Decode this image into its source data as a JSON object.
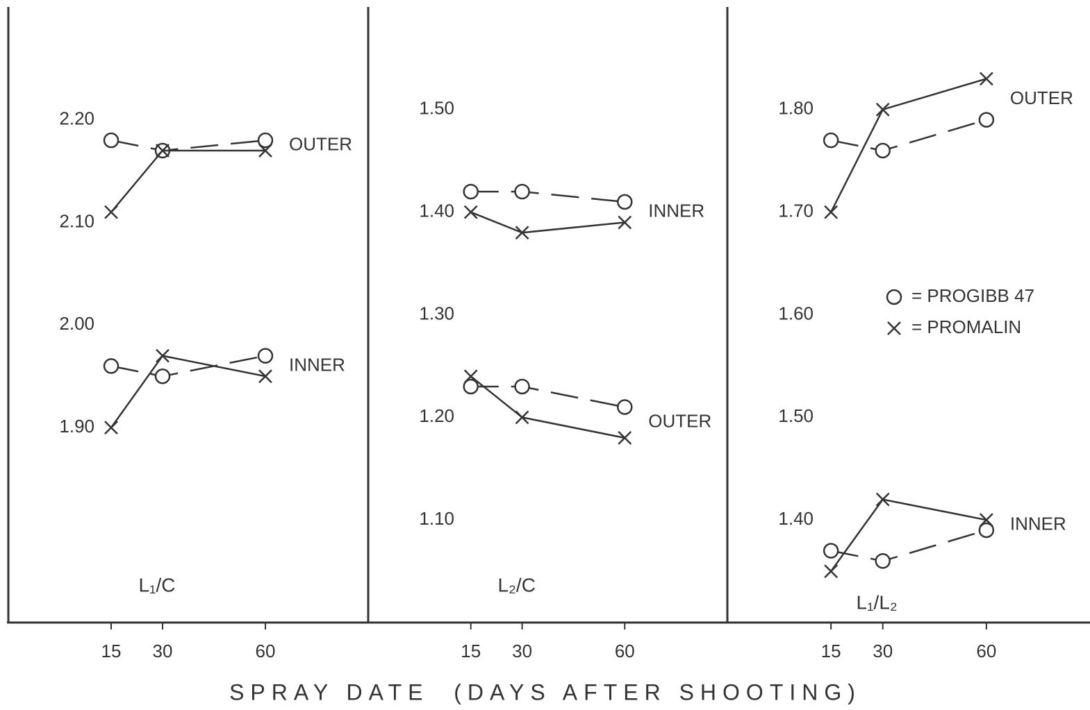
{
  "chart_data": [
    {
      "type": "line",
      "panel_label": "L₁/C",
      "x": [
        15,
        30,
        60
      ],
      "xlim": [
        -15,
        90
      ],
      "xticks": [
        15,
        30,
        60
      ],
      "ylim": [
        1.71,
        2.31
      ],
      "yticks": [
        {
          "value": 1.9,
          "label": "1.90"
        },
        {
          "value": 2.0,
          "label": "2.00"
        },
        {
          "value": 2.1,
          "label": "2.10"
        },
        {
          "value": 2.2,
          "label": "2.20"
        }
      ],
      "groups": [
        {
          "label": "OUTER",
          "series": [
            {
              "marker": "circle",
              "dashed": true,
              "values": [
                2.18,
                2.17,
                2.18
              ]
            },
            {
              "marker": "x",
              "dashed": false,
              "values": [
                2.11,
                2.17,
                2.17
              ]
            }
          ]
        },
        {
          "label": "INNER",
          "series": [
            {
              "marker": "circle",
              "dashed": true,
              "values": [
                1.96,
                1.95,
                1.97
              ]
            },
            {
              "marker": "x",
              "dashed": false,
              "values": [
                1.9,
                1.97,
                1.95
              ]
            }
          ]
        }
      ]
    },
    {
      "type": "line",
      "panel_label": "L₂/C",
      "x": [
        15,
        30,
        60
      ],
      "xlim": [
        -15,
        90
      ],
      "xticks": [
        15,
        30,
        60
      ],
      "ylim": [
        1.0,
        1.6
      ],
      "yticks": [
        {
          "value": 1.1,
          "label": "1.10"
        },
        {
          "value": 1.2,
          "label": "1.20"
        },
        {
          "value": 1.3,
          "label": "1.30"
        },
        {
          "value": 1.4,
          "label": "1.40"
        },
        {
          "value": 1.5,
          "label": "1.50"
        }
      ],
      "groups": [
        {
          "label": "INNER",
          "series": [
            {
              "marker": "circle",
              "dashed": true,
              "values": [
                1.42,
                1.42,
                1.41
              ]
            },
            {
              "marker": "x",
              "dashed": false,
              "values": [
                1.4,
                1.38,
                1.39
              ]
            }
          ]
        },
        {
          "label": "OUTER",
          "series": [
            {
              "marker": "circle",
              "dashed": true,
              "values": [
                1.23,
                1.23,
                1.21
              ]
            },
            {
              "marker": "x",
              "dashed": false,
              "values": [
                1.24,
                1.2,
                1.18
              ]
            }
          ]
        }
      ]
    },
    {
      "type": "line",
      "panel_label": "L₁/L₂",
      "x": [
        15,
        30,
        60
      ],
      "xlim": [
        -15,
        90
      ],
      "xticks": [
        15,
        30,
        60
      ],
      "ylim": [
        1.3,
        1.9
      ],
      "yticks": [
        {
          "value": 1.4,
          "label": "1.40"
        },
        {
          "value": 1.5,
          "label": "1.50"
        },
        {
          "value": 1.6,
          "label": "1.60"
        },
        {
          "value": 1.7,
          "label": "1.70"
        },
        {
          "value": 1.8,
          "label": "1.80"
        }
      ],
      "groups": [
        {
          "label": "OUTER",
          "series": [
            {
              "marker": "circle",
              "dashed": true,
              "values": [
                1.77,
                1.76,
                1.79
              ]
            },
            {
              "marker": "x",
              "dashed": false,
              "values": [
                1.7,
                1.8,
                1.83
              ]
            }
          ]
        },
        {
          "label": "INNER",
          "series": [
            {
              "marker": "circle",
              "dashed": true,
              "values": [
                1.37,
                1.36,
                1.39
              ]
            },
            {
              "marker": "x",
              "dashed": false,
              "values": [
                1.35,
                1.42,
                1.4
              ]
            }
          ]
        }
      ]
    }
  ],
  "legend": [
    {
      "marker": "circle",
      "label": "= PROGIBB 47"
    },
    {
      "marker": "x",
      "label": "= PROMALIN"
    }
  ],
  "x_label": "SPRAY DATE  (DAYS AFTER SHOOTING)"
}
